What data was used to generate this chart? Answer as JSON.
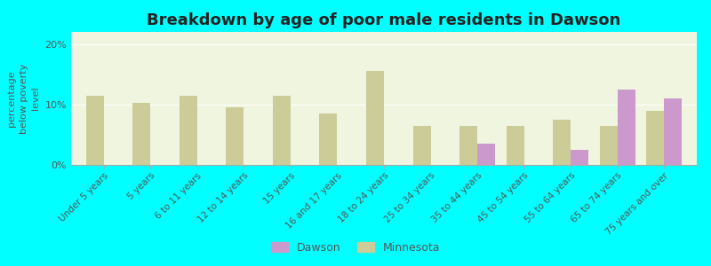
{
  "title": "Breakdown by age of poor male residents in Dawson",
  "categories": [
    "Under 5 years",
    "5 years",
    "6 to 11 years",
    "12 to 14 years",
    "15 years",
    "16 and 17 years",
    "18 to 24 years",
    "25 to 34 years",
    "35 to 44 years",
    "45 to 54 years",
    "55 to 64 years",
    "65 to 74 years",
    "75 years and over"
  ],
  "dawson_values": [
    null,
    null,
    null,
    null,
    null,
    null,
    null,
    null,
    3.5,
    null,
    2.5,
    12.5,
    11.0
  ],
  "minnesota_values": [
    11.5,
    10.2,
    11.5,
    9.5,
    11.5,
    8.5,
    15.5,
    6.5,
    6.5,
    6.5,
    7.5,
    6.5,
    9.0
  ],
  "dawson_color": "#cc99cc",
  "minnesota_color": "#cccc99",
  "ylabel": "percentage\nbelow poverty\nlevel",
  "ylim": [
    0,
    22
  ],
  "yticks": [
    0,
    10,
    20
  ],
  "ytick_labels": [
    "0%",
    "10%",
    "20%"
  ],
  "outer_bg": "#00ffff",
  "plot_bg": "#f0f5e0",
  "title_fontsize": 13,
  "legend_labels": [
    "Dawson",
    "Minnesota"
  ],
  "bar_width": 0.38
}
